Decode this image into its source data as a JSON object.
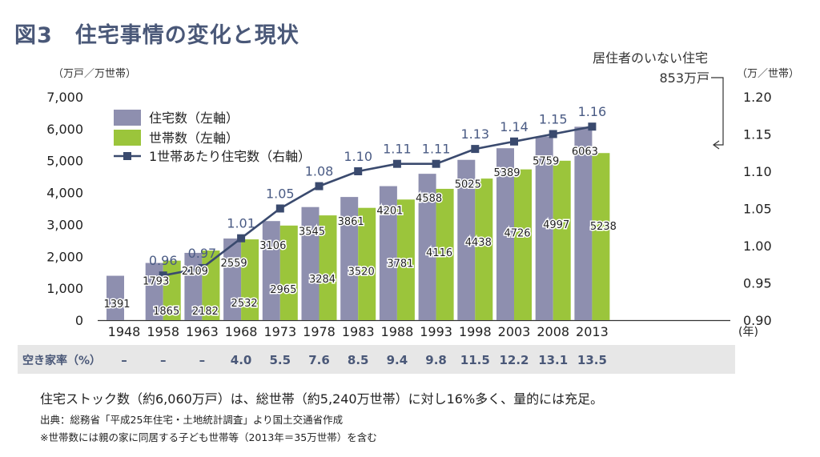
{
  "title": "図3　住宅事情の変化と現状",
  "chart_data": {
    "type": "bar",
    "categories": [
      "1948",
      "1958",
      "1963",
      "1968",
      "1973",
      "1978",
      "1983",
      "1988",
      "1993",
      "1998",
      "2003",
      "2008",
      "2013"
    ],
    "x_unit": "(年)",
    "left_axis": {
      "unit": "（万戸／万世帯）",
      "ylim": [
        0,
        7000
      ],
      "ticks": [
        0,
        1000,
        2000,
        3000,
        4000,
        5000,
        6000,
        7000
      ],
      "tick_labels": [
        "0",
        "1,000",
        "2,000",
        "3,000",
        "4,000",
        "5,000",
        "6,000",
        "7,000"
      ]
    },
    "right_axis": {
      "unit": "（万／世帯）",
      "ylim": [
        0.9,
        1.2
      ],
      "ticks": [
        0.9,
        0.95,
        1.0,
        1.05,
        1.1,
        1.15,
        1.2
      ],
      "tick_labels": [
        "0.90",
        "0.95",
        "1.00",
        "1.05",
        "1.10",
        "1.15",
        "1.20"
      ]
    },
    "series": [
      {
        "name": "住宅数（左軸）",
        "type": "bar",
        "axis": "left",
        "color": "#8e8faf",
        "values": [
          1391,
          1793,
          2109,
          2559,
          3106,
          3545,
          3861,
          4201,
          4588,
          5025,
          5389,
          5759,
          6063
        ],
        "labels": [
          "1391",
          "1793",
          "2109",
          "2559",
          "3106",
          "3545",
          "3861",
          "4201",
          "4588",
          "5025",
          "5389",
          "5759",
          "6063"
        ]
      },
      {
        "name": "世帯数（左軸）",
        "type": "bar",
        "axis": "left",
        "color": "#9bc53b",
        "values": [
          null,
          1865,
          2182,
          2532,
          2965,
          3284,
          3520,
          3781,
          4116,
          4438,
          4726,
          4997,
          5238
        ],
        "labels": [
          "",
          "1865",
          "2182",
          "2532",
          "2965",
          "3284",
          "3520",
          "3781",
          "4116",
          "4438",
          "4726",
          "4997",
          "5238"
        ]
      },
      {
        "name": "1世帯あたり住宅数（右軸）",
        "type": "line",
        "axis": "right",
        "color": "#3a4a6e",
        "values": [
          null,
          0.96,
          0.97,
          1.01,
          1.05,
          1.08,
          1.1,
          1.11,
          1.11,
          1.13,
          1.14,
          1.15,
          1.16
        ],
        "labels": [
          "",
          "0.96",
          "0.97",
          "1.01",
          "1.05",
          "1.08",
          "1.10",
          "1.11",
          "1.11",
          "1.13",
          "1.14",
          "1.15",
          "1.16"
        ]
      }
    ],
    "annotation": {
      "line1": "居住者のいない住宅",
      "line2": "853万戸"
    },
    "vacancy_rate": {
      "label": "空き家率（%）",
      "values": [
        "–",
        "–",
        "–",
        "4.0",
        "5.5",
        "7.6",
        "8.5",
        "9.4",
        "9.8",
        "11.5",
        "12.2",
        "13.1",
        "13.5"
      ]
    },
    "grid": false,
    "legend_position": "top-left"
  },
  "notes": {
    "main": "住宅ストック数（約6,060万戸）は、総世帯（約5,240万世帯）に対し16%多く、量的には充足。",
    "source": "出典：総務省「平成25年住宅・土地統計調査」より国土交通省作成",
    "footnote": "※世帯数には親の家に同居する子ども世帯等（2013年＝35万世帯）を含む"
  },
  "colors": {
    "accent": "#4a5878",
    "bar_houses": "#8e8faf",
    "bar_households": "#9bc53b",
    "line": "#3a4a6e",
    "line_labels": "#4a5b84"
  }
}
